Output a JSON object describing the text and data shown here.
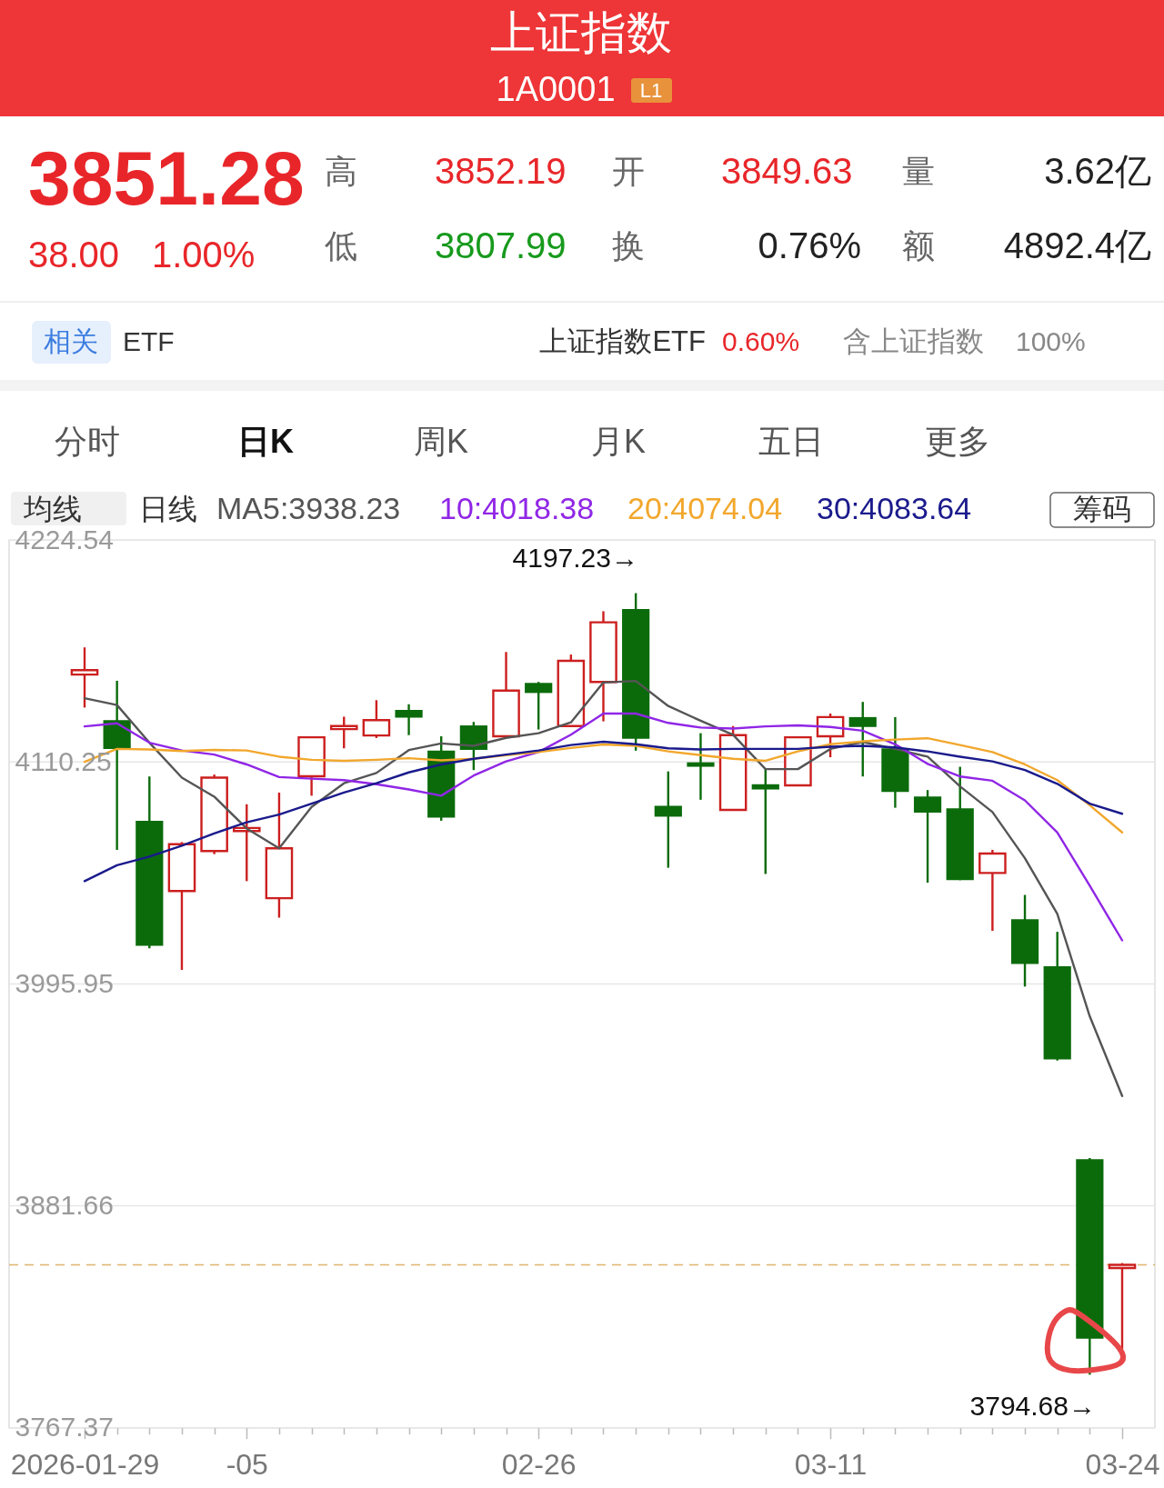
{
  "chart_data": [
    {
      "type": "other",
      "title": "上证指数",
      "subtitle": "1A0001",
      "annotations": [
        "L1",
        "3851.28",
        "38.00",
        "1.00%",
        "高",
        "3852.19",
        "开",
        "3849.63",
        "量",
        "3.62亿",
        "低",
        "3807.99",
        "换",
        "0.76%",
        "额",
        "4892.4亿",
        "相关",
        "ETF",
        "上证指数ETF",
        "0.60%",
        "含上证指数",
        "100%",
        "分时",
        "日K",
        "周K",
        "月K",
        "五日",
        "更多"
      ]
    },
    {
      "type": "candlestick",
      "categories": [
        "2026-01-29",
        null,
        null,
        null,
        null,
        "-05",
        null,
        null,
        null,
        null,
        null,
        null,
        null,
        null,
        "02-26",
        null,
        null,
        null,
        null,
        null,
        null,
        null,
        null,
        "03-11",
        null,
        null,
        null,
        null,
        null,
        null,
        null,
        null,
        "03-24"
      ],
      "ohlc": [
        [
          4155.3,
          4169.3,
          4138.3,
          4157.6
        ],
        [
          4131.8,
          4152.1,
          4065.0,
          4117.0
        ],
        [
          4080.0,
          4102.8,
          4014.3,
          4015.6
        ],
        [
          4043.8,
          4069.0,
          4003.2,
          4067.9
        ],
        [
          4064.4,
          4103.8,
          4062.8,
          4102.2
        ],
        [
          4074.7,
          4088.5,
          4048.9,
          4076.3
        ],
        [
          4040.1,
          4094.5,
          4030.1,
          4065.8
        ],
        [
          4102.9,
          4123.0,
          4092.9,
          4123.0
        ],
        [
          4127.2,
          4133.6,
          4117.3,
          4128.8
        ],
        [
          4123.9,
          4142.1,
          4122.6,
          4131.8
        ],
        [
          4137.1,
          4140.0,
          4124.1,
          4133.1
        ],
        [
          4116.1,
          4123.5,
          4080.0,
          4081.6
        ],
        [
          4129.1,
          4130.9,
          4106.1,
          4116.5
        ],
        [
          4123.5,
          4166.9,
          4123.5,
          4147.0
        ],
        [
          4151.0,
          4151.5,
          4127.0,
          4145.8
        ],
        [
          4128.8,
          4165.6,
          4128.8,
          4162.4
        ],
        [
          4151.5,
          4187.9,
          4131.2,
          4182.2
        ],
        [
          4189.1,
          4197.23,
          4116.1,
          4122.2
        ],
        [
          4087.7,
          4105.4,
          4055.8,
          4082.1
        ],
        [
          4110.1,
          4125.1,
          4090.8,
          4107.8
        ],
        [
          4085.6,
          4128.8,
          4085.6,
          4124.1
        ],
        [
          4098.8,
          4106.5,
          4052.6,
          4096.1
        ],
        [
          4098.2,
          4123.0,
          4098.2,
          4123.0
        ],
        [
          4123.5,
          4135.2,
          4112.7,
          4133.4
        ],
        [
          4133.4,
          4141.2,
          4102.8,
          4128.3
        ],
        [
          4117.3,
          4133.4,
          4086.7,
          4094.8
        ],
        [
          4092.5,
          4095.8,
          4048.1,
          4084.2
        ],
        [
          4086.4,
          4107.8,
          4049.4,
          4049.4
        ],
        [
          4053.1,
          4065.0,
          4023.3,
          4063.1
        ],
        [
          4029.3,
          4041.8,
          3994.6,
          4006.2
        ],
        [
          4005.1,
          4022.8,
          3956.5,
          3957.1
        ],
        [
          3905.7,
          3906.3,
          3794.68,
          3813.28
        ],
        [
          3849.63,
          3852.19,
          3807.99,
          3851.28
        ]
      ],
      "colors": [
        "#cc1f1f",
        "#0b6b0b",
        "#0b6b0b",
        "#cc1f1f",
        "#cc1f1f",
        "#cc1f1f",
        "#cc1f1f",
        "#cc1f1f",
        "#cc1f1f",
        "#cc1f1f",
        "#0b6b0b",
        "#0b6b0b",
        "#0b6b0b",
        "#cc1f1f",
        "#0b6b0b",
        "#cc1f1f",
        "#cc1f1f",
        "#0b6b0b",
        "#0b6b0b",
        "#0b6b0b",
        "#cc1f1f",
        "#0b6b0b",
        "#cc1f1f",
        "#cc1f1f",
        "#0b6b0b",
        "#0b6b0b",
        "#0b6b0b",
        "#0b6b0b",
        "#cc1f1f",
        "#0b6b0b",
        "#0b6b0b",
        "#0b6b0b",
        "#cc1f1f"
      ],
      "series": [
        {
          "name": "MA5:3938.23",
          "type": "line",
          "color": "#555555",
          "values": [
            4143.1,
            4139.6,
            4120.2,
            4102.2,
            4092.4,
            4076.0,
            4065.8,
            4087.1,
            4099.3,
            4104.6,
            4116.4,
            4119.8,
            4118.6,
            4122.7,
            4125.1,
            4130.7,
            4151.2,
            4152.0,
            4139.1,
            4131.5,
            4124.3,
            4106.6,
            4106.6,
            4117.0,
            4120.6,
            4117.0,
            4113.0,
            4097.7,
            4084.5,
            4060.7,
            4032.0,
            3979.3,
            3938.2
          ]
        },
        {
          "name": "10:4018.38",
          "type": "line",
          "color": "#9026e6",
          "values": [
            4128.6,
            4130.2,
            4120.2,
            4116.2,
            4114.1,
            4109.0,
            4102.5,
            4101.7,
            4100.9,
            4098.8,
            4096.1,
            4092.9,
            4103.3,
            4110.6,
            4115.4,
            4124.3,
            4135.2,
            4135.2,
            4130.4,
            4128.0,
            4127.5,
            4128.6,
            4129.1,
            4128.3,
            4126.4,
            4119.4,
            4109.3,
            4102.8,
            4100.6,
            4090.5,
            4073.9,
            4046.5,
            4018.4
          ]
        },
        {
          "name": "20:4074.04",
          "type": "line",
          "color": "#f2a72c",
          "values": [
            4110.3,
            4117.0,
            4116.7,
            4115.9,
            4116.5,
            4116.2,
            4113.0,
            4111.4,
            4110.9,
            4111.4,
            4112.2,
            4111.1,
            4111.9,
            4113.8,
            4115.4,
            4117.5,
            4119.3,
            4118.6,
            4115.7,
            4113.8,
            4111.9,
            4110.9,
            4115.7,
            4119.4,
            4120.9,
            4121.8,
            4122.5,
            4119.0,
            4115.4,
            4109.0,
            4100.9,
            4088.0,
            4074.0
          ]
        },
        {
          "name": "30:4083.64",
          "type": "line",
          "color": "#1a1a8c",
          "values": [
            4048.9,
            4057.1,
            4061.5,
            4067.1,
            4073.5,
            4079.2,
            4083.2,
            4088.8,
            4094.5,
            4099.3,
            4104.9,
            4109.0,
            4111.9,
            4114.1,
            4116.2,
            4119.0,
            4120.7,
            4119.4,
            4117.3,
            4116.7,
            4117.0,
            4117.0,
            4117.0,
            4118.1,
            4118.6,
            4117.8,
            4115.7,
            4113.0,
            4110.6,
            4106.1,
            4099.0,
            4088.8,
            4083.6
          ]
        }
      ],
      "ylim": [
        3767.37,
        4224.54
      ],
      "yticks": [
        4224.54,
        4110.25,
        3995.95,
        3881.66,
        3767.37
      ],
      "grid": "y",
      "legend": "top",
      "ref_lines": [
        {
          "axis": "y",
          "value": 3851.28,
          "color": "#e0b46e",
          "line_style": "dashed"
        }
      ],
      "annotations": [
        "均线",
        "日线",
        "筹码",
        "4197.23→",
        "3794.68→"
      ]
    }
  ]
}
